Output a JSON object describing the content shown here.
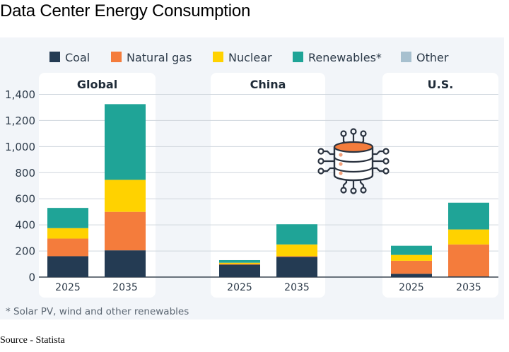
{
  "page": {
    "title": "Data Center Energy Consumption",
    "source": "Source - Statista"
  },
  "chart_data": {
    "type": "bar",
    "stacked": true,
    "title": "Data Center Energy Consumption",
    "xlabel": "",
    "ylabel": "",
    "ylim": [
      0,
      1400
    ],
    "yticks": [
      0,
      200,
      400,
      600,
      800,
      1000,
      1200,
      1400
    ],
    "ytick_labels": [
      "0",
      "200",
      "400",
      "600",
      "800",
      "1,000",
      "1,200",
      "1,400"
    ],
    "grid": true,
    "legend_position": "top",
    "groups": [
      {
        "name": "Global",
        "categories": [
          "2025",
          "2035"
        ]
      },
      {
        "name": "China",
        "categories": [
          "2025",
          "2035"
        ]
      },
      {
        "name": "U.S.",
        "categories": [
          "2025",
          "2035"
        ]
      }
    ],
    "categories": [
      "Global 2025",
      "Global 2035",
      "China 2025",
      "China 2035",
      "U.S. 2025",
      "U.S. 2035"
    ],
    "series": [
      {
        "name": "Coal",
        "color": "#243b53",
        "values": [
          160,
          205,
          95,
          155,
          25,
          5
        ]
      },
      {
        "name": "Natural gas",
        "color": "#f47c3c",
        "values": [
          135,
          295,
          5,
          5,
          100,
          245
        ]
      },
      {
        "name": "Nuclear",
        "color": "#ffd200",
        "values": [
          80,
          245,
          10,
          90,
          45,
          115
        ]
      },
      {
        "name": "Renewables*",
        "color": "#1fa497",
        "values": [
          155,
          580,
          20,
          155,
          70,
          205
        ]
      },
      {
        "name": "Other",
        "color": "#a7c0cf",
        "values": [
          0,
          0,
          0,
          0,
          0,
          0
        ]
      }
    ],
    "footnote": "* Solar PV, wind and other renewables",
    "annotations": [
      "server-database-icon"
    ]
  }
}
